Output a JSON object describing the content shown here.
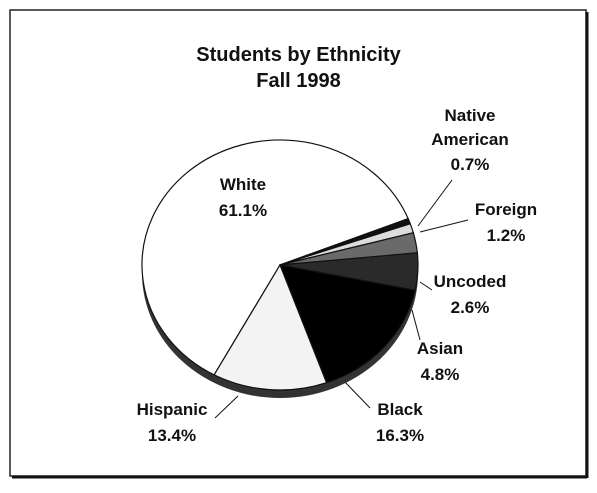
{
  "chart_data": {
    "type": "pie",
    "title": "Students by Ethnicity",
    "subtitle": "Fall 1998",
    "categories": [
      "White",
      "Native American",
      "Foreign",
      "Uncoded",
      "Asian",
      "Black",
      "Hispanic"
    ],
    "values": [
      61.1,
      0.7,
      1.2,
      2.6,
      4.8,
      16.3,
      13.4
    ],
    "value_labels": [
      "61.1%",
      "0.7%",
      "1.2%",
      "2.6%",
      "4.8%",
      "16.3%",
      "13.4%"
    ],
    "colors": [
      "#ffffff",
      "#111111",
      "#dcdcdc",
      "#6a6a6a",
      "#2a2a2a",
      "#000000",
      "#f3f3f3"
    ]
  }
}
